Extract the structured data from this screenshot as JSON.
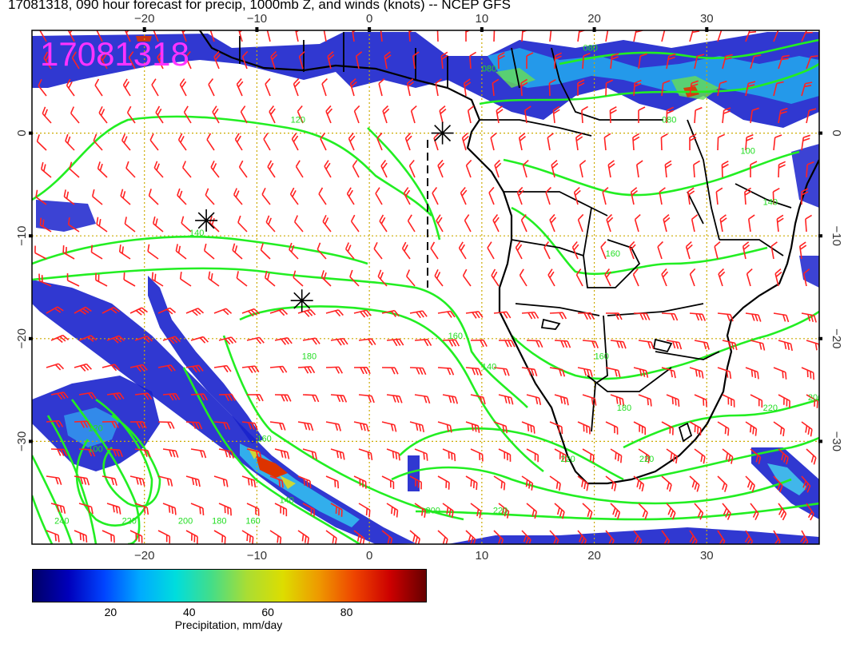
{
  "title": "17081318, 090 hour forecast for precip, 1000mb Z, and winds (knots) -- NCEP GFS",
  "stamp": "17081318",
  "map": {
    "lon_range": [
      -30,
      40
    ],
    "lat_range": [
      -40,
      10
    ],
    "top_lon_ticks": [
      {
        "lon": -20,
        "label": "−20"
      },
      {
        "lon": -10,
        "label": "−10"
      },
      {
        "lon": 0,
        "label": "0"
      },
      {
        "lon": 10,
        "label": "10"
      },
      {
        "lon": 20,
        "label": "20"
      },
      {
        "lon": 30,
        "label": "30"
      }
    ],
    "bottom_lon_ticks": [
      {
        "lon": -20,
        "label": "−20"
      },
      {
        "lon": -10,
        "label": "−10"
      },
      {
        "lon": 0,
        "label": "0"
      },
      {
        "lon": 10,
        "label": "10"
      },
      {
        "lon": 20,
        "label": "20"
      },
      {
        "lon": 30,
        "label": "30"
      }
    ],
    "lat_ticks": [
      {
        "lat": 0,
        "label": "0"
      },
      {
        "lat": -10,
        "label": "−10"
      },
      {
        "lat": -20,
        "label": "−20"
      },
      {
        "lat": -30,
        "label": "−30"
      }
    ],
    "contour_labels": [
      {
        "lon": -6,
        "lat": -22,
        "label": "180"
      },
      {
        "lon": -16,
        "lat": -10,
        "label": "140"
      },
      {
        "lon": 7,
        "lat": -20,
        "label": "160"
      },
      {
        "lon": 10,
        "lat": -23,
        "label": "140"
      },
      {
        "lon": -25,
        "lat": -29,
        "label": "120"
      },
      {
        "lon": -25,
        "lat": -31,
        "label": "100"
      },
      {
        "lon": -10,
        "lat": -30,
        "label": "160"
      },
      {
        "lon": -28,
        "lat": -38,
        "label": "240"
      },
      {
        "lon": -22,
        "lat": -38,
        "label": "220"
      },
      {
        "lon": -17,
        "lat": -38,
        "label": "200"
      },
      {
        "lon": -14,
        "lat": -38,
        "label": "180"
      },
      {
        "lon": -11,
        "lat": -38,
        "label": "160"
      },
      {
        "lon": -8,
        "lat": -36,
        "label": "140"
      },
      {
        "lon": 5,
        "lat": -37,
        "label": "200"
      },
      {
        "lon": 11,
        "lat": -37,
        "label": "220"
      },
      {
        "lon": 17,
        "lat": -32,
        "label": "220"
      },
      {
        "lon": 24,
        "lat": -32,
        "label": "220"
      },
      {
        "lon": 39,
        "lat": -26,
        "label": "200"
      },
      {
        "lon": 35,
        "lat": -27,
        "label": "220"
      },
      {
        "lon": 22,
        "lat": -27,
        "label": "180"
      },
      {
        "lon": 20,
        "lat": -22,
        "label": "160"
      },
      {
        "lon": 21,
        "lat": -12,
        "label": "160"
      },
      {
        "lon": 35,
        "lat": -7,
        "label": "140"
      },
      {
        "lon": 33,
        "lat": -2,
        "label": "100"
      },
      {
        "lon": 26,
        "lat": 1,
        "label": "080"
      },
      {
        "lon": -7,
        "lat": 1,
        "label": "120"
      },
      {
        "lon": 10,
        "lat": 6,
        "label": "080"
      },
      {
        "lon": 19,
        "lat": 8,
        "label": "080"
      }
    ],
    "cyclone_markers": [
      {
        "lon": -14.5,
        "lat": -8.5
      },
      {
        "lon": -6,
        "lat": -16.3
      },
      {
        "lon": 6.5,
        "lat": 0
      }
    ]
  },
  "colorbar": {
    "title": "Precipitation, mm/day",
    "min": 0,
    "max": 100,
    "ticks": [
      20,
      40,
      60,
      80
    ],
    "colors": [
      "#000066",
      "#0000bb",
      "#0044ff",
      "#00aaff",
      "#00dddd",
      "#44dd88",
      "#aadd33",
      "#dddd00",
      "#ee9900",
      "#ee4400",
      "#cc0000",
      "#660000"
    ]
  },
  "colors": {
    "wind_barb": "#ff2222",
    "contour": "#22ee22",
    "grid": "#ccaa00",
    "stamp": "#ff33ff",
    "coast": "#000000"
  }
}
